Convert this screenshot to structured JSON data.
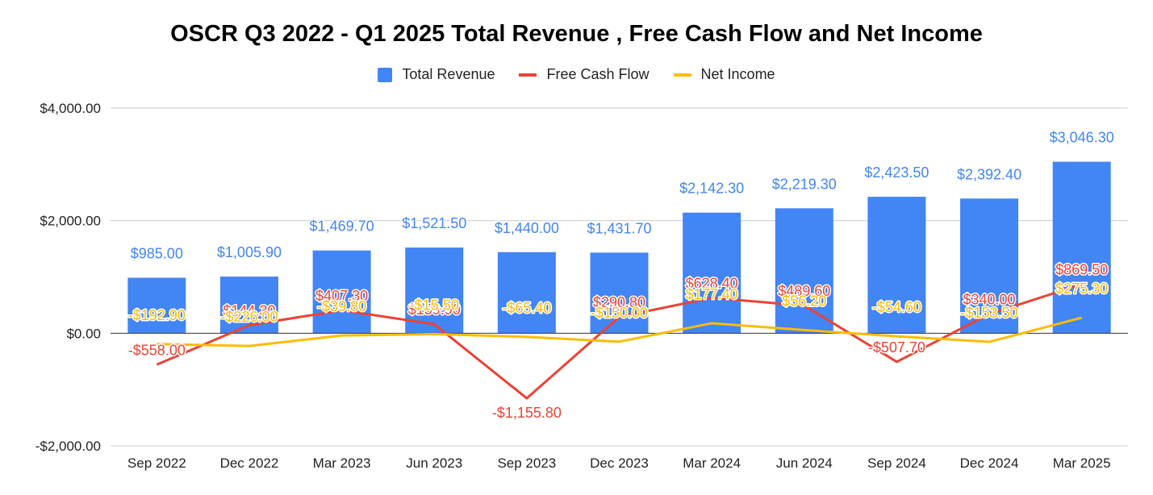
{
  "chart_data": {
    "type": "bar",
    "title": "OSCR Q3 2022 - Q1 2025 Total Revenue , Free Cash Flow and Net Income",
    "categories": [
      "Sep 2022",
      "Dec 2022",
      "Mar 2023",
      "Jun 2023",
      "Sep 2023",
      "Dec 2023",
      "Mar 2024",
      "Jun 2024",
      "Sep 2024",
      "Dec 2024",
      "Mar 2025"
    ],
    "ylim": [
      -2000,
      4000
    ],
    "yticks": [
      -2000,
      0,
      2000,
      4000
    ],
    "ytick_labels": [
      "-$2,000.00",
      "$0.00",
      "$2,000.00",
      "$4,000.00"
    ],
    "grid": true,
    "legend_position": "top",
    "series": [
      {
        "name": "Total Revenue",
        "kind": "bar",
        "color": "#4285f4",
        "values": [
          985.0,
          1005.9,
          1469.7,
          1521.5,
          1440.0,
          1431.7,
          2142.3,
          2219.3,
          2423.5,
          2392.4,
          3046.3
        ],
        "labels": [
          "$985.00",
          "$1,005.90",
          "$1,469.70",
          "$1,521.50",
          "$1,440.00",
          "$1,431.70",
          "$2,142.30",
          "$2,219.30",
          "$2,423.50",
          "$2,392.40",
          "$3,046.30"
        ]
      },
      {
        "name": "Free Cash Flow",
        "kind": "line",
        "color": "#ea4335",
        "values": [
          -558.0,
          144.3,
          407.3,
          159.9,
          -1155.8,
          290.8,
          628.4,
          489.6,
          -507.7,
          340.0,
          869.5
        ],
        "labels": [
          "-$558.00",
          "$144.30",
          "$407.30",
          "$159.90",
          "-$1,155.80",
          "$290.80",
          "$628.40",
          "$489.60",
          "-$507.70",
          "$340.00",
          "$869.50"
        ]
      },
      {
        "name": "Net Income",
        "kind": "line",
        "color": "#fbbc04",
        "values": [
          -192.9,
          -226.0,
          -39.8,
          -15.5,
          -65.4,
          -150.0,
          177.4,
          56.2,
          -54.6,
          -153.5,
          275.3
        ],
        "labels": [
          "-$192.90",
          "-$226.00",
          "-$39.80",
          "-$15.50",
          "-$65.40",
          "-$150.00",
          "$177.40",
          "$56.20",
          "-$54.60",
          "-$153.50",
          "$275.30"
        ]
      }
    ]
  }
}
